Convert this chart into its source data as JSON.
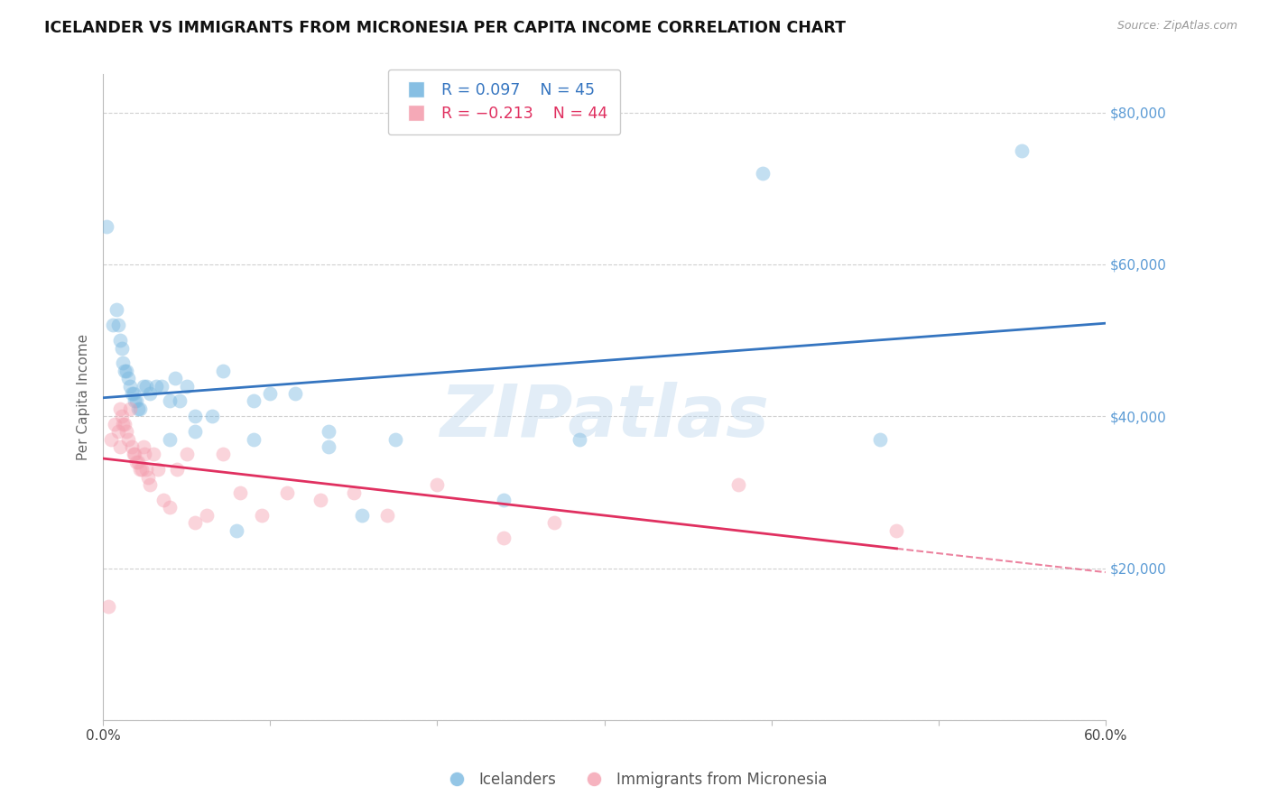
{
  "title": "ICELANDER VS IMMIGRANTS FROM MICRONESIA PER CAPITA INCOME CORRELATION CHART",
  "source": "Source: ZipAtlas.com",
  "ylabel": "Per Capita Income",
  "watermark": "ZIPatlas",
  "xlim": [
    0.0,
    0.6
  ],
  "ylim": [
    0,
    85000
  ],
  "yticks": [
    0,
    20000,
    40000,
    60000,
    80000
  ],
  "xticks": [
    0.0,
    0.1,
    0.2,
    0.3,
    0.4,
    0.5,
    0.6
  ],
  "xtick_labels": [
    "0.0%",
    "",
    "",
    "",
    "",
    "",
    "60.0%"
  ],
  "blue_color": "#7ab8e0",
  "pink_color": "#f4a0b0",
  "line_blue": "#3575c0",
  "line_pink": "#e03060",
  "legend_R1": "R = 0.097",
  "legend_N1": "N = 45",
  "legend_R2": "R = -0.213",
  "legend_N2": "N = 44",
  "legend_label1": "Icelanders",
  "legend_label2": "Immigrants from Micronesia",
  "blue_x": [
    0.002,
    0.006,
    0.008,
    0.009,
    0.01,
    0.011,
    0.012,
    0.013,
    0.014,
    0.015,
    0.016,
    0.017,
    0.018,
    0.019,
    0.02,
    0.021,
    0.022,
    0.024,
    0.026,
    0.028,
    0.032,
    0.035,
    0.04,
    0.043,
    0.046,
    0.05,
    0.055,
    0.065,
    0.072,
    0.08,
    0.09,
    0.1,
    0.115,
    0.135,
    0.155,
    0.175,
    0.24,
    0.285,
    0.395,
    0.465,
    0.55,
    0.135,
    0.09,
    0.055,
    0.04
  ],
  "blue_y": [
    65000,
    52000,
    54000,
    52000,
    50000,
    49000,
    47000,
    46000,
    46000,
    45000,
    44000,
    43000,
    43000,
    42000,
    42000,
    41000,
    41000,
    44000,
    44000,
    43000,
    44000,
    44000,
    42000,
    45000,
    42000,
    44000,
    40000,
    40000,
    46000,
    25000,
    42000,
    43000,
    43000,
    38000,
    27000,
    37000,
    29000,
    37000,
    72000,
    37000,
    75000,
    36000,
    37000,
    38000,
    37000
  ],
  "pink_x": [
    0.003,
    0.005,
    0.007,
    0.009,
    0.01,
    0.011,
    0.012,
    0.013,
    0.014,
    0.015,
    0.016,
    0.017,
    0.018,
    0.019,
    0.02,
    0.021,
    0.022,
    0.023,
    0.024,
    0.025,
    0.026,
    0.027,
    0.028,
    0.03,
    0.033,
    0.036,
    0.04,
    0.044,
    0.05,
    0.055,
    0.062,
    0.072,
    0.082,
    0.095,
    0.11,
    0.13,
    0.15,
    0.17,
    0.2,
    0.24,
    0.27,
    0.38,
    0.475,
    0.01
  ],
  "pink_y": [
    15000,
    37000,
    39000,
    38000,
    41000,
    40000,
    39000,
    39000,
    38000,
    37000,
    41000,
    36000,
    35000,
    35000,
    34000,
    34000,
    33000,
    33000,
    36000,
    35000,
    33000,
    32000,
    31000,
    35000,
    33000,
    29000,
    28000,
    33000,
    35000,
    26000,
    27000,
    35000,
    30000,
    27000,
    30000,
    29000,
    30000,
    27000,
    31000,
    24000,
    26000,
    31000,
    25000,
    36000
  ],
  "background_color": "#ffffff",
  "axis_color": "#5b9bd5",
  "title_fontsize": 12.5,
  "label_fontsize": 11,
  "tick_fontsize": 11,
  "marker_size": 130,
  "marker_alpha": 0.45,
  "figsize": [
    14.06,
    8.92
  ],
  "dpi": 100
}
